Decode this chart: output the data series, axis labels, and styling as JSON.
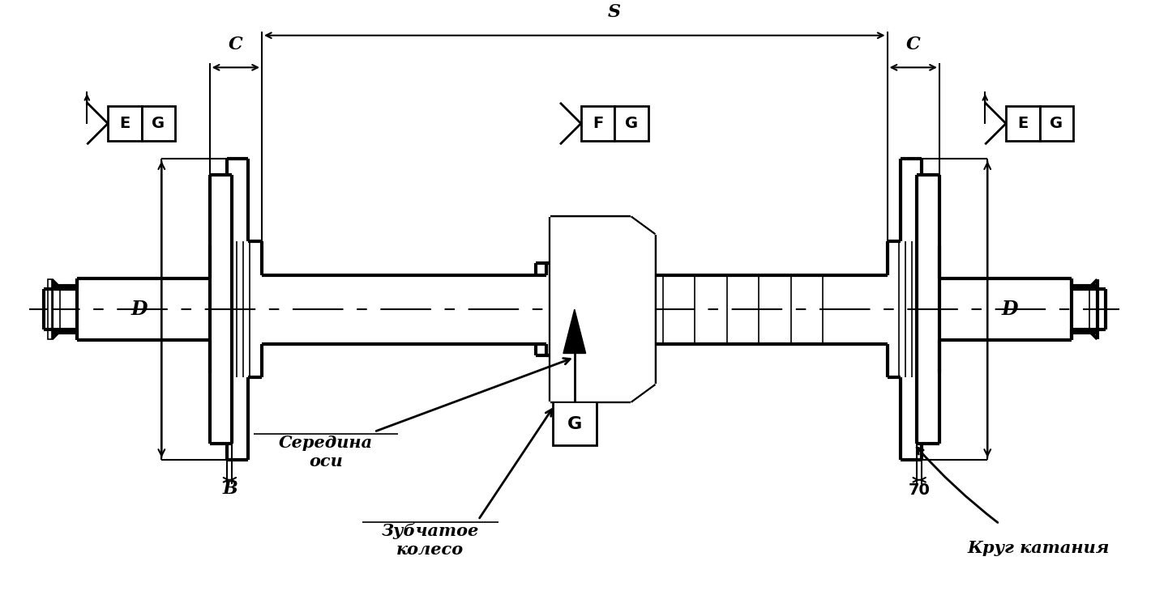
{
  "bg_color": "#ffffff",
  "line_color": "#000000",
  "label_B": "B",
  "label_D": "D",
  "label_C": "C",
  "label_S": "S",
  "label_70": "70",
  "label_zub": "Зубчатое\nколесо",
  "label_ser": "Середина\nоси",
  "label_krug": "Круг катания",
  "label_E": "E",
  "label_G": "G",
  "label_F": "F"
}
